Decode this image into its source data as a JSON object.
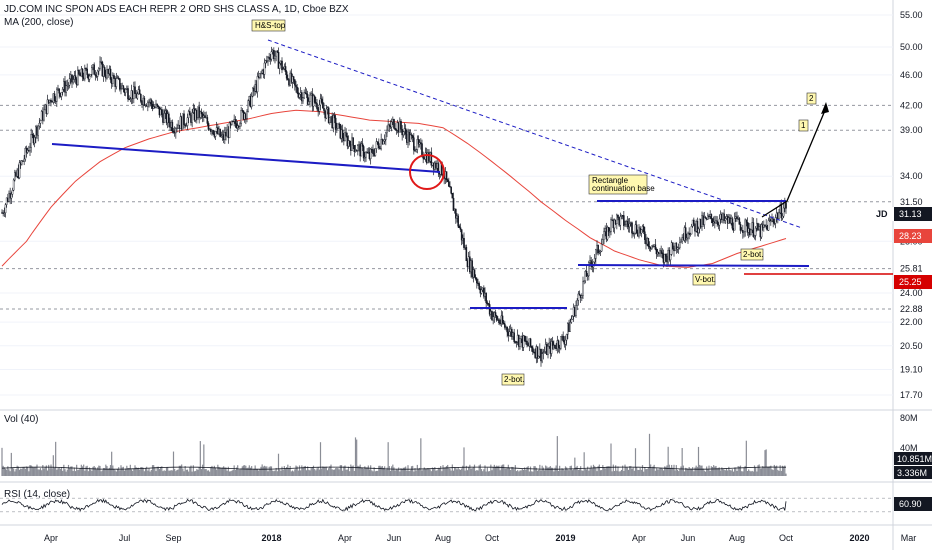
{
  "chart_data": [
    {
      "type": "candlestick",
      "title": "JD.COM INC SPON ADS EACH REPR 2 ORD SHS CLASS A, 1D, Cboe BZX",
      "indicator_label": "MA (200, close)",
      "symbol": "JD",
      "last_price": "31.13",
      "ma_value": "28.23",
      "hline_label": "25.25",
      "y_scale": "log",
      "ylim": [
        17.0,
        57.0
      ],
      "y_ticks": [
        "55.00",
        "50.00",
        "46.00",
        "42.00",
        "39.00",
        "34.00",
        "31.50",
        "28.00",
        "25.81",
        "24.00",
        "22.88",
        "22.00",
        "20.50",
        "19.10",
        "17.70"
      ],
      "dashed_levels": [
        42.0,
        39.0,
        31.5,
        25.81,
        22.88
      ],
      "x_labels": [
        "Apr",
        "Jul",
        "Sep",
        "2018",
        "Apr",
        "Jun",
        "Aug",
        "Oct",
        "2019",
        "Apr",
        "Jun",
        "Aug",
        "Oct",
        "2020",
        "Mar"
      ],
      "x": [
        "2017-02",
        "2017-03",
        "2017-04",
        "2017-05",
        "2017-06",
        "2017-07",
        "2017-08",
        "2017-09",
        "2017-10",
        "2017-11",
        "2017-12",
        "2018-01",
        "2018-02",
        "2018-03",
        "2018-04",
        "2018-05",
        "2018-06",
        "2018-07",
        "2018-08",
        "2018-09",
        "2018-10",
        "2018-11",
        "2018-12",
        "2019-01",
        "2019-02",
        "2019-03",
        "2019-04",
        "2019-05",
        "2019-06",
        "2019-07",
        "2019-08",
        "2019-09",
        "2019-10"
      ],
      "close": [
        30.5,
        36.5,
        43.0,
        45.5,
        47.0,
        44.0,
        42.5,
        39.5,
        41.0,
        38.0,
        41.5,
        49.5,
        44.0,
        42.0,
        38.0,
        36.0,
        40.0,
        37.0,
        34.5,
        26.5,
        22.5,
        21.0,
        20.0,
        21.0,
        26.0,
        30.0,
        29.0,
        26.5,
        29.0,
        30.0,
        29.5,
        28.8,
        31.13
      ],
      "ma_200": [
        26.0,
        28.0,
        31.0,
        33.5,
        35.5,
        37.0,
        38.0,
        38.8,
        39.3,
        39.8,
        40.3,
        41.0,
        41.4,
        41.2,
        40.7,
        40.2,
        40.0,
        39.8,
        39.3,
        37.5,
        35.5,
        33.5,
        31.5,
        29.8,
        28.3,
        27.2,
        26.5,
        26.0,
        25.9,
        26.2,
        27.0,
        27.6,
        28.23
      ],
      "annotations": [
        "H&S-top",
        "Rectangle",
        "continuation base",
        "2-bot.",
        "V-bot.",
        "2-bot.",
        "1",
        "2"
      ]
    },
    {
      "type": "bar",
      "title": "Vol (40)",
      "y_ticks": [
        "80M",
        "40M"
      ],
      "value_label_1": "10.851M",
      "value_label_2": "3.336M",
      "ma_value_m": 10.851,
      "last_value_m": 3.336
    },
    {
      "type": "line",
      "title": "RSI (14, close)",
      "value_label": "60.90",
      "ylim": [
        0,
        100
      ],
      "last_value": 60.9
    }
  ],
  "colors": {
    "up": "#131722",
    "down": "#131722",
    "ma": "#e8453c",
    "trendline": "#1c1cc4",
    "last_price_bg": "#131722",
    "ma_bg": "#e8453c",
    "hline_bg": "#d50000",
    "hline": "#d50000",
    "arrow": "#000000"
  }
}
